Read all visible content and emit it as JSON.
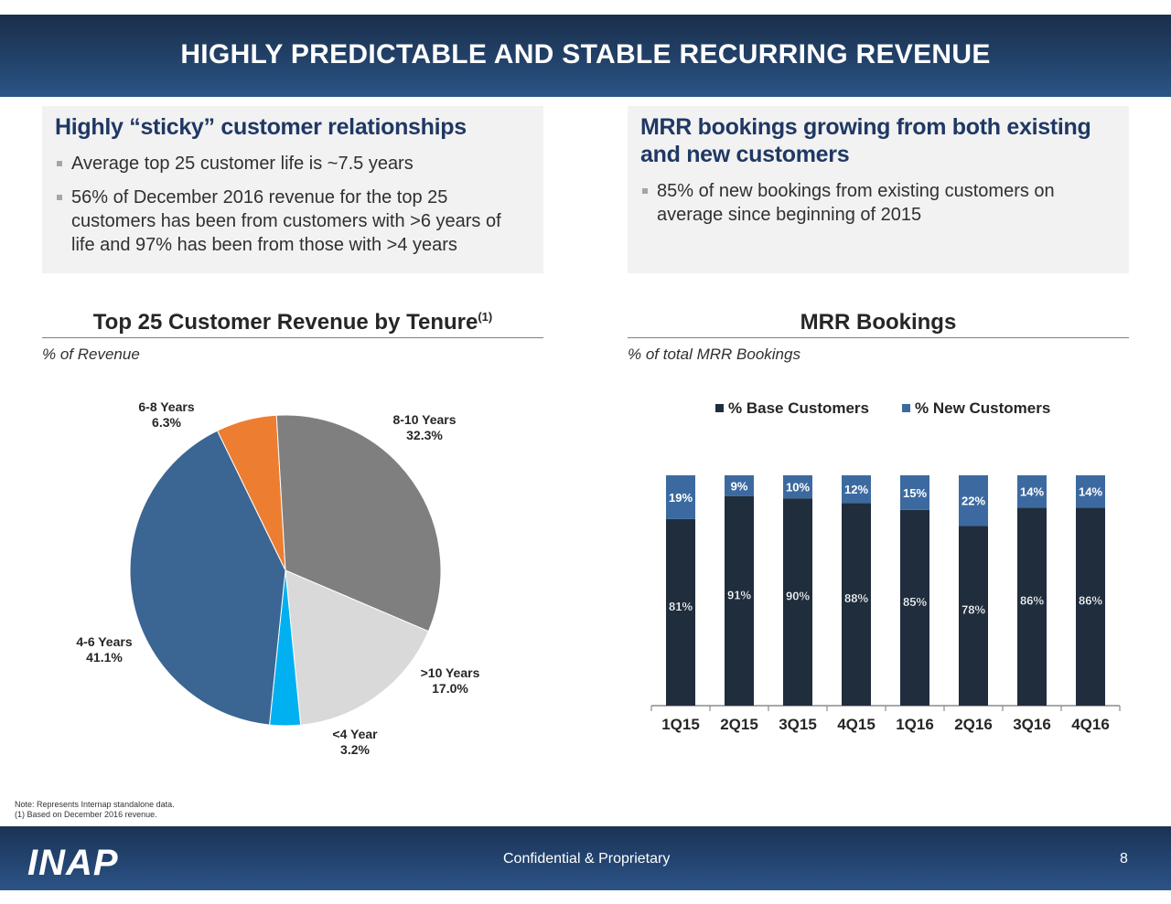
{
  "title": "HIGHLY PREDICTABLE AND STABLE RECURRING REVENUE",
  "left_panel": {
    "heading": "Highly “sticky” customer relationships",
    "bullets": [
      "Average top 25 customer life is ~7.5 years",
      "56% of December 2016 revenue for the top 25 customers has been from customers with >6 years of life and 97% has been from those with >4 years"
    ]
  },
  "right_panel": {
    "heading": "MRR bookings growing from both existing and new customers",
    "bullets": [
      "85% of new bookings from existing customers on average since beginning of 2015"
    ]
  },
  "pie_section": {
    "title": "Top 25 Customer Revenue by Tenure",
    "title_sup": "(1)",
    "subtitle": "% of Revenue"
  },
  "bar_section": {
    "title": "MRR Bookings",
    "subtitle": "% of total MRR Bookings"
  },
  "chart_data": [
    {
      "type": "pie",
      "slices": [
        {
          "label": "6-8 Years",
          "value": 6.3,
          "value_label": "6.3%",
          "color": "#ed7d31"
        },
        {
          "label": "8-10 Years",
          "value": 32.3,
          "value_label": "32.3%",
          "color": "#7f7f7f"
        },
        {
          "label": ">10 Years",
          "value": 17.0,
          "value_label": "17.0%",
          "color": "#d9d9d9"
        },
        {
          "label": "<4 Year",
          "value": 3.2,
          "value_label": "3.2%",
          "color": "#00b0f0"
        },
        {
          "label": "4-6 Years",
          "value": 41.1,
          "value_label": "41.1%",
          "color": "#3b6593"
        }
      ]
    },
    {
      "type": "bar",
      "stacked": true,
      "categories": [
        "1Q15",
        "2Q15",
        "3Q15",
        "4Q15",
        "1Q16",
        "2Q16",
        "3Q16",
        "4Q16"
      ],
      "series": [
        {
          "name": "% Base Customers",
          "values": [
            81,
            91,
            90,
            88,
            85,
            78,
            86,
            86
          ],
          "color": "#1f2d3d"
        },
        {
          "name": "% New Customers",
          "values": [
            19,
            9,
            10,
            12,
            15,
            22,
            14,
            14
          ],
          "color": "#3c6aa0"
        }
      ],
      "ylim": [
        0,
        100
      ],
      "legend": "top"
    }
  ],
  "note": {
    "line1": "Note: Represents Internap standalone data.",
    "line2": "(1) Based on December 2016 revenue."
  },
  "footer": {
    "logo": "INAP",
    "confidential": "Confidential & Proprietary",
    "page_number": "8"
  }
}
